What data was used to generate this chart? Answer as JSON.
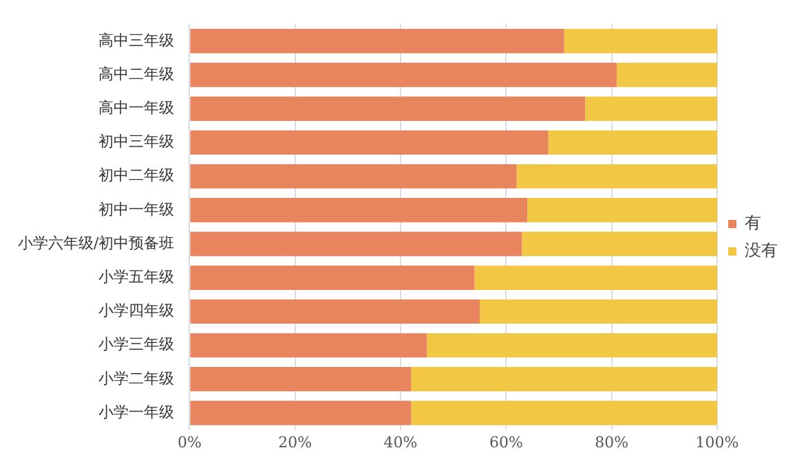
{
  "chart_data": {
    "type": "bar",
    "orientation": "horizontal",
    "stacked": true,
    "categories": [
      "高中三年级",
      "高中二年级",
      "高中一年级",
      "初中三年级",
      "初中二年级",
      "初中一年级",
      "小学六年级/初中预备班",
      "小学五年级",
      "小学四年级",
      "小学三年级",
      "小学二年级",
      "小学一年级"
    ],
    "series": [
      {
        "name": "有",
        "color": "#e8855f",
        "values": [
          71,
          81,
          75,
          68,
          62,
          64,
          63,
          54,
          55,
          45,
          42,
          42
        ]
      },
      {
        "name": "没有",
        "color": "#f2c744",
        "values": [
          29,
          19,
          25,
          32,
          38,
          36,
          37,
          46,
          45,
          55,
          58,
          58
        ]
      }
    ],
    "xlim": [
      0,
      100
    ],
    "xticks": [
      {
        "value": 0,
        "label": "0%"
      },
      {
        "value": 20,
        "label": "20%"
      },
      {
        "value": 40,
        "label": "40%"
      },
      {
        "value": 60,
        "label": "60%"
      },
      {
        "value": 80,
        "label": "80%"
      },
      {
        "value": 100,
        "label": "100%"
      }
    ],
    "grid": "x",
    "legend": "right"
  }
}
